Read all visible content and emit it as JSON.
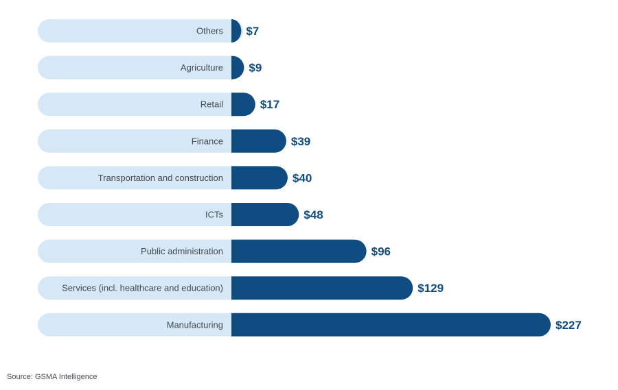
{
  "chart_data": {
    "type": "bar",
    "orientation": "horizontal",
    "categories": [
      "Others",
      "Agriculture",
      "Retail",
      "Finance",
      "Transportation and construction",
      "ICTs",
      "Public administration",
      "Services (incl. healthcare and education)",
      "Manufacturing"
    ],
    "values": [
      7,
      9,
      17,
      39,
      40,
      48,
      96,
      129,
      227
    ],
    "value_labels": [
      "$7",
      "$9",
      "$17",
      "$39",
      "$40",
      "$48",
      "$96",
      "$129",
      "$227"
    ],
    "title": "",
    "xlabel": "",
    "ylabel": "",
    "xlim": [
      0,
      227
    ],
    "grid": false,
    "legend": "none"
  },
  "source": "Source: GSMA Intelligence",
  "colors": {
    "bar": "#0f4c81",
    "label_track": "#d6e8f5",
    "value_text": "#0f4c81",
    "category_text": "#444a52"
  }
}
